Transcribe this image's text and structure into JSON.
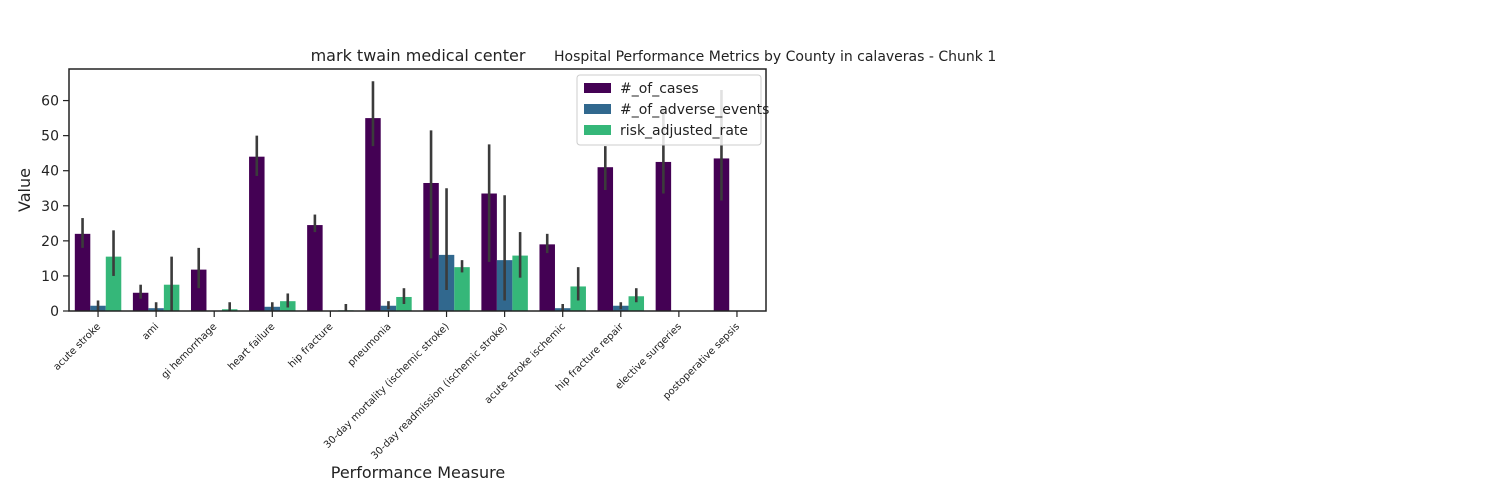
{
  "figure": {
    "suptitle": "Hospital Performance Metrics by County in calaveras - Chunk 1"
  },
  "chart_data": {
    "type": "bar",
    "title": "mark twain medical center",
    "xlabel": "Performance Measure",
    "ylabel": "Value",
    "ylim": [
      0,
      69
    ],
    "yticks": [
      0,
      10,
      20,
      30,
      40,
      50,
      60
    ],
    "grid": false,
    "legend_position": "top-right",
    "categories": [
      "acute stroke",
      "ami",
      "gi hemorrhage",
      "heart failure",
      "hip fracture",
      "pneumonia",
      "30-day mortality (ischemic stroke)",
      "30-day readmission (ischemic stroke)",
      "acute stroke ischemic",
      "hip fracture repair",
      "elective surgeries",
      "postoperative sepsis"
    ],
    "series": [
      {
        "name": "#_of_cases",
        "color": "#440154",
        "values": [
          22,
          5.2,
          11.8,
          44,
          24.5,
          55,
          36.5,
          33.5,
          19,
          41,
          42.5,
          43.5
        ],
        "err_low": [
          18,
          3.5,
          6.5,
          38.5,
          22.5,
          47,
          15,
          14,
          16.5,
          34.5,
          33.5,
          31.5
        ],
        "err_high": [
          26.5,
          7.5,
          18,
          50,
          27.5,
          65.5,
          51.5,
          47.5,
          22,
          47,
          57.5,
          63
        ]
      },
      {
        "name": "#_of_adverse_events",
        "color": "#31688e",
        "values": [
          1.5,
          0.8,
          0,
          1.2,
          0,
          1.5,
          16,
          14.5,
          0.8,
          1.5,
          0,
          0
        ],
        "err_low": [
          0.2,
          0,
          0,
          0.2,
          0,
          0.5,
          6,
          3,
          0,
          0.5,
          0,
          0
        ],
        "err_high": [
          3,
          2.5,
          0,
          2.5,
          0,
          2.8,
          35,
          33,
          2,
          2.5,
          0,
          0
        ]
      },
      {
        "name": "risk_adjusted_rate",
        "color": "#35b779",
        "values": [
          15.5,
          7.5,
          0.5,
          2.8,
          0.2,
          4,
          12.5,
          15.8,
          7,
          4.2,
          0,
          0
        ],
        "err_low": [
          10,
          0,
          0,
          1,
          0,
          2,
          11,
          9.5,
          3,
          2.5,
          0,
          0
        ],
        "err_high": [
          23,
          15.5,
          2.5,
          5,
          2,
          6.5,
          14.5,
          22.5,
          12.5,
          6.5,
          0,
          0
        ]
      }
    ]
  }
}
